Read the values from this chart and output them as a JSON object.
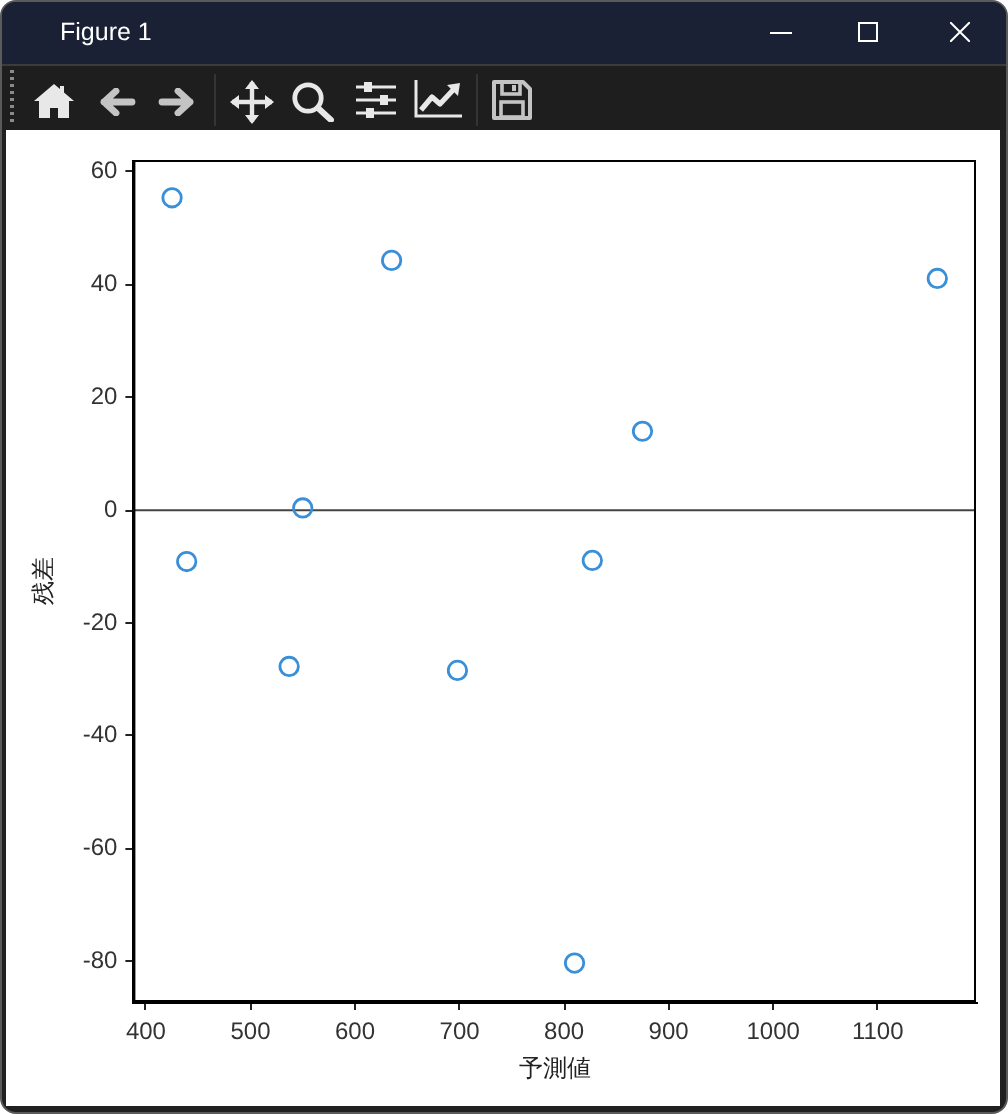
{
  "chart_data": {
    "type": "scatter",
    "title": "Figure 1",
    "xlabel": "予測値",
    "ylabel": "残差",
    "x": [
      425,
      439,
      550,
      537,
      635,
      698,
      827,
      875,
      810,
      1157
    ],
    "values": [
      55.4,
      -9.1,
      0.4,
      -27.7,
      44.3,
      -28.4,
      -8.9,
      14.0,
      -80.3,
      41.1
    ],
    "color": "#3a8fd9",
    "marker": "circle",
    "xlim": [
      388,
      1194
    ],
    "ylim": [
      -87.2,
      62.1
    ],
    "xticks": [
      400,
      500,
      600,
      700,
      800,
      900,
      1000,
      1100
    ],
    "yticks": [
      -80,
      -60,
      -40,
      -20,
      0,
      20,
      40,
      60
    ],
    "grid": false,
    "legend": false,
    "ref_lines": [
      {
        "axis": "y",
        "value": 0,
        "color": "#444444"
      }
    ]
  }
}
